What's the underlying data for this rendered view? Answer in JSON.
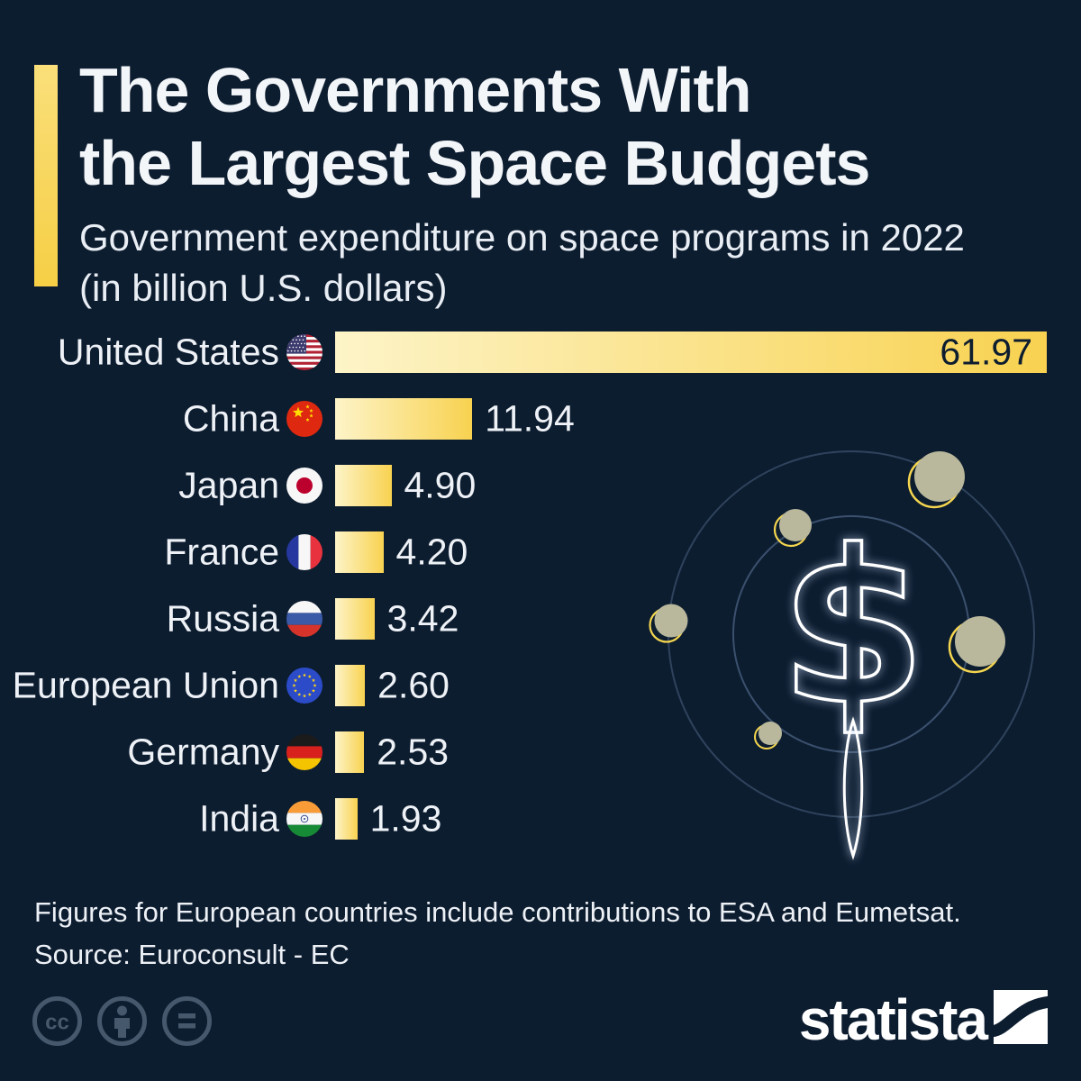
{
  "header": {
    "title_line1": "The Governments With",
    "title_line2": "the Largest Space Budgets",
    "subtitle_line1": "Government expenditure on space programs in 2022",
    "subtitle_line2": "(in billion U.S. dollars)"
  },
  "chart_data": {
    "type": "bar",
    "orientation": "horizontal",
    "title": "The Governments With the Largest Space Budgets",
    "subtitle": "Government expenditure on space programs in 2022 (in billion U.S. dollars)",
    "unit": "billion U.S. dollars",
    "year": "2022",
    "xlim": [
      0,
      62
    ],
    "grid": false,
    "legend": false,
    "categories": [
      "United States",
      "China",
      "Japan",
      "France",
      "Russia",
      "European Union",
      "Germany",
      "India"
    ],
    "values": [
      61.97,
      11.94,
      4.9,
      4.2,
      3.42,
      2.6,
      2.53,
      1.93
    ],
    "value_labels": [
      "61.97",
      "11.94",
      "4.90",
      "4.20",
      "3.42",
      "2.60",
      "2.53",
      "1.93"
    ],
    "flags": [
      "us",
      "cn",
      "jp",
      "fr",
      "ru",
      "eu",
      "de",
      "in"
    ],
    "value_inside_bar": [
      true,
      false,
      false,
      false,
      false,
      false,
      false,
      false
    ]
  },
  "footer": {
    "note": "Figures for European countries include contributions to ESA and Eumetsat.",
    "source": "Source: Euroconsult - EC",
    "brand": "statista",
    "license_icons": [
      "cc-icon",
      "attribution-icon",
      "equal-sign-icon"
    ]
  },
  "colors": {
    "background": "#0d1d30",
    "text_light": "#eef2f7",
    "accent_yellow": "#f7d14b",
    "bar_gradient_start": "#fdf4c8",
    "bar_gradient_end": "#f8d250",
    "value_inside_text": "#0d1d30",
    "planet_fill": "#b9b89c",
    "planet_ring": "#f5d64f",
    "orbit_line": "#4a6281",
    "license_icon": "#46586c"
  }
}
